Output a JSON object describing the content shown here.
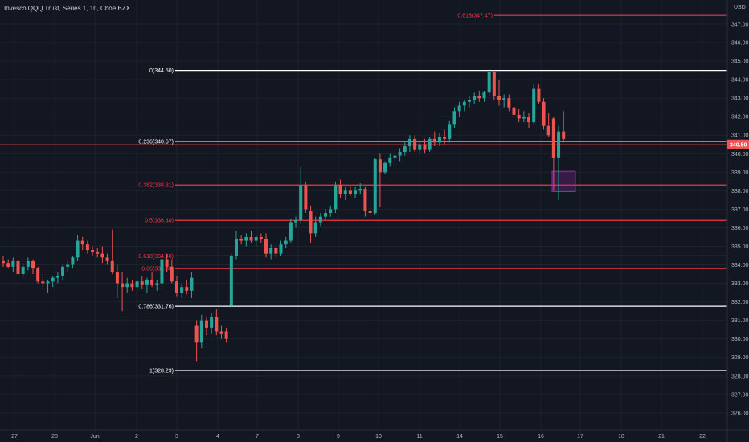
{
  "header": {
    "title": "Invesco QQQ Trust, Series 1, 1h, Cboe BZX",
    "currency": "USD"
  },
  "colors": {
    "background": "#131722",
    "grid": "#1e222d",
    "up": "#26a69a",
    "down": "#ef5350",
    "fib_white": "#ffffff",
    "fib_red": "#f23645",
    "highlight_box": "#9c27b0",
    "axis_text": "#b2b5be"
  },
  "chart_data": {
    "type": "candlestick",
    "title": "Invesco QQQ Trust, Series 1, 1h, Cboe BZX",
    "ylabel": "USD",
    "ylim": [
      325.5,
      348.0
    ],
    "yticks": [
      "347.00",
      "346.00",
      "345.00",
      "344.00",
      "343.00",
      "342.00",
      "341.00",
      "340.00",
      "339.00",
      "338.00",
      "337.00",
      "336.00",
      "335.00",
      "334.00",
      "333.00",
      "332.00",
      "331.00",
      "330.00",
      "329.00",
      "328.00",
      "327.00",
      "326.00"
    ],
    "xticks": [
      "27",
      "28",
      "Jun",
      "2",
      "3",
      "4",
      "7",
      "8",
      "9",
      "10",
      "11",
      "14",
      "15",
      "16",
      "17",
      "18",
      "21",
      "22"
    ],
    "last_price": "340.50",
    "grid": true,
    "fib_levels": [
      {
        "label": "0.618(347.47)",
        "value": 347.47,
        "color": "red"
      },
      {
        "label": "0(344.50)",
        "value": 344.5,
        "color": "white"
      },
      {
        "label": "0.236(340.67)",
        "value": 340.67,
        "color": "white"
      },
      {
        "label": "0.382(338.31)",
        "value": 338.31,
        "color": "red"
      },
      {
        "label": "0.5(336.40)",
        "value": 336.4,
        "color": "red"
      },
      {
        "label": "0.618(334.48)",
        "value": 334.48,
        "color": "red"
      },
      {
        "label": "0.66(333.80)",
        "value": 333.8,
        "color": "red"
      },
      {
        "label": "0.786(331.76)",
        "value": 331.76,
        "color": "white"
      },
      {
        "label": "1(328.29)",
        "value": 328.29,
        "color": "white"
      }
    ],
    "candles": [
      {
        "o": 334.2,
        "h": 334.5,
        "l": 333.9,
        "c": 334.1
      },
      {
        "o": 334.1,
        "h": 334.3,
        "l": 333.8,
        "c": 333.9
      },
      {
        "o": 333.9,
        "h": 334.4,
        "l": 333.6,
        "c": 334.2
      },
      {
        "o": 334.2,
        "h": 334.4,
        "l": 333.0,
        "c": 333.5
      },
      {
        "o": 333.5,
        "h": 334.1,
        "l": 333.3,
        "c": 333.9
      },
      {
        "o": 333.9,
        "h": 334.4,
        "l": 333.7,
        "c": 334.2
      },
      {
        "o": 334.2,
        "h": 334.3,
        "l": 333.5,
        "c": 333.8
      },
      {
        "o": 333.8,
        "h": 333.9,
        "l": 333.0,
        "c": 333.1
      },
      {
        "o": 333.1,
        "h": 333.5,
        "l": 332.7,
        "c": 333.0
      },
      {
        "o": 333.0,
        "h": 333.2,
        "l": 332.5,
        "c": 333.1
      },
      {
        "o": 333.1,
        "h": 333.4,
        "l": 332.8,
        "c": 333.3
      },
      {
        "o": 333.3,
        "h": 333.6,
        "l": 333.0,
        "c": 333.4
      },
      {
        "o": 333.4,
        "h": 334.0,
        "l": 333.2,
        "c": 333.9
      },
      {
        "o": 333.9,
        "h": 334.2,
        "l": 333.6,
        "c": 334.0
      },
      {
        "o": 334.0,
        "h": 334.5,
        "l": 333.8,
        "c": 334.4
      },
      {
        "o": 334.4,
        "h": 335.6,
        "l": 334.2,
        "c": 335.3
      },
      {
        "o": 335.3,
        "h": 335.5,
        "l": 334.8,
        "c": 335.1
      },
      {
        "o": 335.1,
        "h": 335.3,
        "l": 334.6,
        "c": 334.8
      },
      {
        "o": 334.8,
        "h": 335.0,
        "l": 334.5,
        "c": 334.7
      },
      {
        "o": 334.7,
        "h": 334.9,
        "l": 334.4,
        "c": 334.6
      },
      {
        "o": 334.6,
        "h": 335.0,
        "l": 334.1,
        "c": 334.4
      },
      {
        "o": 334.4,
        "h": 334.6,
        "l": 334.0,
        "c": 334.2
      },
      {
        "o": 334.2,
        "h": 335.9,
        "l": 333.5,
        "c": 333.6
      },
      {
        "o": 333.6,
        "h": 334.0,
        "l": 332.2,
        "c": 333.0
      },
      {
        "o": 333.0,
        "h": 333.6,
        "l": 331.5,
        "c": 332.8
      },
      {
        "o": 332.8,
        "h": 333.3,
        "l": 332.5,
        "c": 333.0
      },
      {
        "o": 333.0,
        "h": 333.2,
        "l": 332.6,
        "c": 332.8
      },
      {
        "o": 332.8,
        "h": 333.3,
        "l": 332.6,
        "c": 333.1
      },
      {
        "o": 333.1,
        "h": 333.4,
        "l": 332.7,
        "c": 332.9
      },
      {
        "o": 332.9,
        "h": 333.3,
        "l": 332.5,
        "c": 333.2
      },
      {
        "o": 333.2,
        "h": 333.6,
        "l": 332.8,
        "c": 332.9
      },
      {
        "o": 332.9,
        "h": 333.2,
        "l": 332.6,
        "c": 333.0
      },
      {
        "o": 333.0,
        "h": 334.5,
        "l": 332.8,
        "c": 334.3
      },
      {
        "o": 334.3,
        "h": 334.6,
        "l": 333.6,
        "c": 333.9
      },
      {
        "o": 333.9,
        "h": 334.3,
        "l": 333.0,
        "c": 333.1
      },
      {
        "o": 333.1,
        "h": 333.4,
        "l": 332.3,
        "c": 332.5
      },
      {
        "o": 332.5,
        "h": 333.0,
        "l": 332.2,
        "c": 332.8
      },
      {
        "o": 332.8,
        "h": 333.2,
        "l": 332.4,
        "c": 332.6
      },
      {
        "o": 332.6,
        "h": 333.6,
        "l": 332.2,
        "c": 333.3
      },
      {
        "o": 330.7,
        "h": 331.0,
        "l": 328.8,
        "c": 329.8
      },
      {
        "o": 329.8,
        "h": 331.3,
        "l": 329.5,
        "c": 331.0
      },
      {
        "o": 331.0,
        "h": 331.2,
        "l": 330.2,
        "c": 330.6
      },
      {
        "o": 330.6,
        "h": 331.4,
        "l": 330.3,
        "c": 331.2
      },
      {
        "o": 331.2,
        "h": 331.6,
        "l": 330.2,
        "c": 330.4
      },
      {
        "o": 330.4,
        "h": 330.7,
        "l": 330.0,
        "c": 330.3
      },
      {
        "o": 330.4,
        "h": 330.6,
        "l": 329.8,
        "c": 330.0
      },
      {
        "o": 331.8,
        "h": 334.6,
        "l": 331.7,
        "c": 334.5
      },
      {
        "o": 334.5,
        "h": 335.8,
        "l": 334.3,
        "c": 335.4
      },
      {
        "o": 335.4,
        "h": 335.6,
        "l": 335.1,
        "c": 335.3
      },
      {
        "o": 335.3,
        "h": 335.7,
        "l": 335.0,
        "c": 335.5
      },
      {
        "o": 335.5,
        "h": 335.8,
        "l": 335.2,
        "c": 335.3
      },
      {
        "o": 335.3,
        "h": 335.6,
        "l": 335.0,
        "c": 335.5
      },
      {
        "o": 335.5,
        "h": 335.7,
        "l": 335.2,
        "c": 335.4
      },
      {
        "o": 335.4,
        "h": 335.7,
        "l": 334.4,
        "c": 334.6
      },
      {
        "o": 334.6,
        "h": 335.1,
        "l": 334.3,
        "c": 334.9
      },
      {
        "o": 334.9,
        "h": 335.0,
        "l": 334.4,
        "c": 334.6
      },
      {
        "o": 334.6,
        "h": 335.3,
        "l": 334.5,
        "c": 335.1
      },
      {
        "o": 335.1,
        "h": 335.5,
        "l": 334.9,
        "c": 335.3
      },
      {
        "o": 335.3,
        "h": 336.5,
        "l": 335.2,
        "c": 336.3
      },
      {
        "o": 336.3,
        "h": 336.6,
        "l": 336.0,
        "c": 336.4
      },
      {
        "o": 336.4,
        "h": 339.3,
        "l": 336.2,
        "c": 338.3
      },
      {
        "o": 338.3,
        "h": 338.5,
        "l": 336.8,
        "c": 337.0
      },
      {
        "o": 336.9,
        "h": 337.2,
        "l": 335.2,
        "c": 335.7
      },
      {
        "o": 335.7,
        "h": 336.6,
        "l": 335.5,
        "c": 336.3
      },
      {
        "o": 336.3,
        "h": 336.8,
        "l": 336.1,
        "c": 336.6
      },
      {
        "o": 336.6,
        "h": 337.0,
        "l": 336.4,
        "c": 336.8
      },
      {
        "o": 336.8,
        "h": 337.2,
        "l": 336.6,
        "c": 337.0
      },
      {
        "o": 337.0,
        "h": 338.5,
        "l": 336.8,
        "c": 338.3
      },
      {
        "o": 338.3,
        "h": 338.6,
        "l": 337.6,
        "c": 337.8
      },
      {
        "o": 337.8,
        "h": 338.2,
        "l": 337.5,
        "c": 338.0
      },
      {
        "o": 338.0,
        "h": 338.3,
        "l": 337.7,
        "c": 337.8
      },
      {
        "o": 337.8,
        "h": 338.2,
        "l": 337.6,
        "c": 338.0
      },
      {
        "o": 338.0,
        "h": 338.4,
        "l": 337.8,
        "c": 338.1
      },
      {
        "o": 338.1,
        "h": 338.2,
        "l": 336.6,
        "c": 336.9
      },
      {
        "o": 336.9,
        "h": 337.2,
        "l": 336.6,
        "c": 336.8
      },
      {
        "o": 336.8,
        "h": 339.8,
        "l": 336.7,
        "c": 339.7
      },
      {
        "o": 339.7,
        "h": 340.0,
        "l": 337.1,
        "c": 339.0
      },
      {
        "o": 339.0,
        "h": 339.6,
        "l": 338.9,
        "c": 339.5
      },
      {
        "o": 339.5,
        "h": 340.0,
        "l": 339.3,
        "c": 339.8
      },
      {
        "o": 339.8,
        "h": 340.2,
        "l": 339.5,
        "c": 339.9
      },
      {
        "o": 339.9,
        "h": 340.3,
        "l": 339.6,
        "c": 340.1
      },
      {
        "o": 340.1,
        "h": 340.6,
        "l": 339.9,
        "c": 340.4
      },
      {
        "o": 340.4,
        "h": 341.0,
        "l": 340.1,
        "c": 340.8
      },
      {
        "o": 340.8,
        "h": 341.0,
        "l": 340.1,
        "c": 340.2
      },
      {
        "o": 340.2,
        "h": 340.7,
        "l": 340.0,
        "c": 340.5
      },
      {
        "o": 340.5,
        "h": 340.8,
        "l": 340.0,
        "c": 340.2
      },
      {
        "o": 340.2,
        "h": 340.9,
        "l": 340.1,
        "c": 340.8
      },
      {
        "o": 340.8,
        "h": 341.2,
        "l": 340.4,
        "c": 340.6
      },
      {
        "o": 340.6,
        "h": 341.1,
        "l": 340.4,
        "c": 340.9
      },
      {
        "o": 340.9,
        "h": 341.3,
        "l": 340.5,
        "c": 340.8
      },
      {
        "o": 340.8,
        "h": 341.8,
        "l": 340.6,
        "c": 341.6
      },
      {
        "o": 341.6,
        "h": 342.5,
        "l": 341.4,
        "c": 342.3
      },
      {
        "o": 342.3,
        "h": 342.8,
        "l": 342.0,
        "c": 342.6
      },
      {
        "o": 342.6,
        "h": 342.9,
        "l": 342.3,
        "c": 342.8
      },
      {
        "o": 342.8,
        "h": 343.1,
        "l": 342.5,
        "c": 342.9
      },
      {
        "o": 342.9,
        "h": 343.3,
        "l": 342.7,
        "c": 343.1
      },
      {
        "o": 343.1,
        "h": 343.4,
        "l": 342.8,
        "c": 343.0
      },
      {
        "o": 343.0,
        "h": 343.4,
        "l": 342.8,
        "c": 343.3
      },
      {
        "o": 343.3,
        "h": 344.6,
        "l": 343.1,
        "c": 344.4
      },
      {
        "o": 344.4,
        "h": 344.5,
        "l": 342.9,
        "c": 343.1
      },
      {
        "o": 343.1,
        "h": 344.0,
        "l": 342.6,
        "c": 342.9
      },
      {
        "o": 342.9,
        "h": 343.2,
        "l": 342.5,
        "c": 343.0
      },
      {
        "o": 343.0,
        "h": 343.2,
        "l": 342.3,
        "c": 342.5
      },
      {
        "o": 342.5,
        "h": 342.7,
        "l": 341.9,
        "c": 342.1
      },
      {
        "o": 342.1,
        "h": 342.4,
        "l": 341.7,
        "c": 341.9
      },
      {
        "o": 341.9,
        "h": 342.3,
        "l": 341.7,
        "c": 342.0
      },
      {
        "o": 342.0,
        "h": 342.2,
        "l": 341.4,
        "c": 341.7
      },
      {
        "o": 341.7,
        "h": 343.8,
        "l": 341.6,
        "c": 343.5
      },
      {
        "o": 343.5,
        "h": 343.8,
        "l": 342.7,
        "c": 342.8
      },
      {
        "o": 342.8,
        "h": 343.0,
        "l": 341.3,
        "c": 341.5
      },
      {
        "o": 341.5,
        "h": 342.2,
        "l": 340.9,
        "c": 341.0
      },
      {
        "o": 341.9,
        "h": 342.0,
        "l": 338.0,
        "c": 339.8
      },
      {
        "o": 339.8,
        "h": 341.5,
        "l": 337.5,
        "c": 341.2
      },
      {
        "o": 341.2,
        "h": 342.3,
        "l": 340.6,
        "c": 340.8
      }
    ]
  }
}
